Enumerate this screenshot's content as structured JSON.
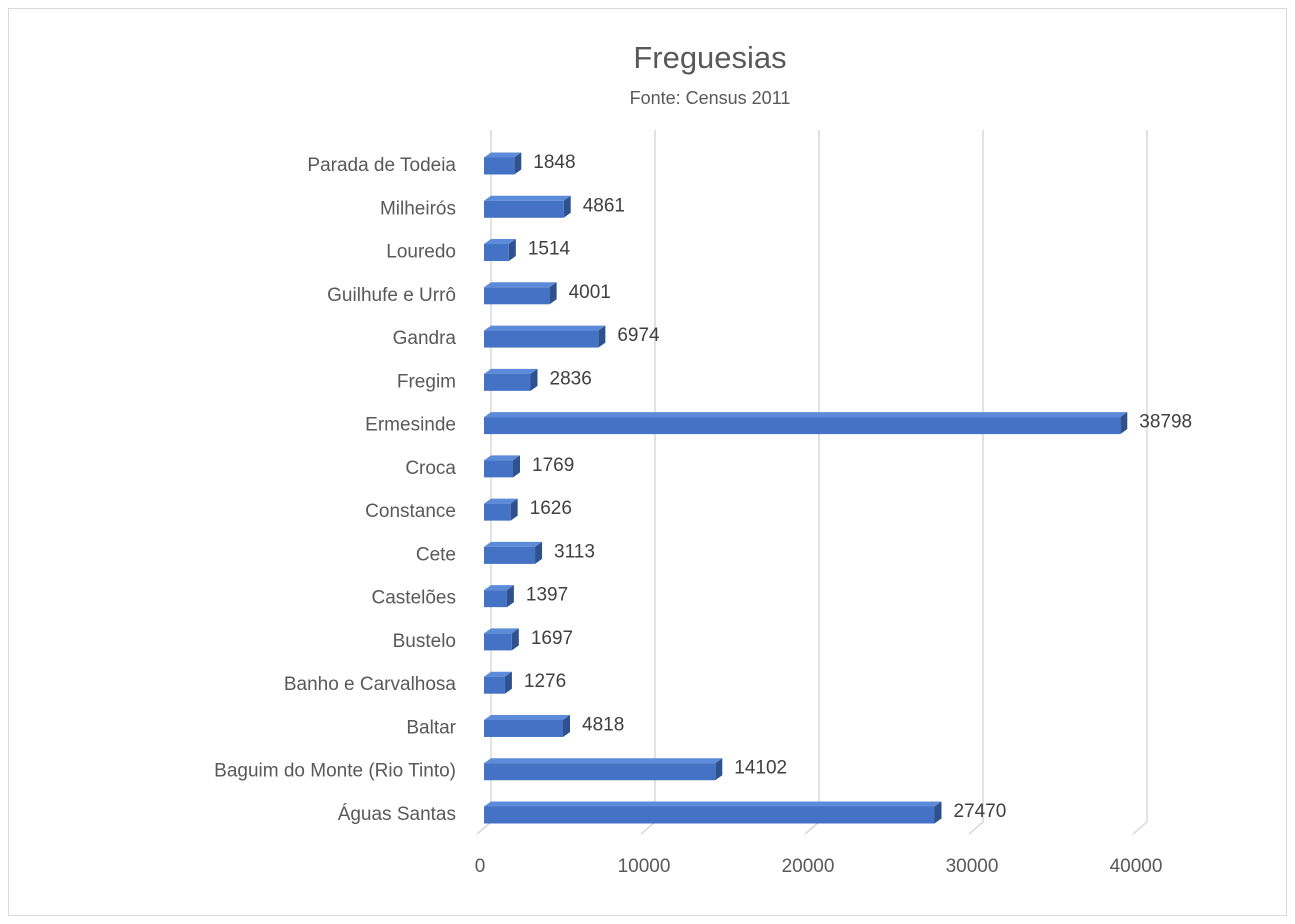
{
  "chart_data": {
    "type": "bar",
    "orientation": "horizontal",
    "style": "3d",
    "title": "Freguesias",
    "subtitle": "Fonte: Census 2011",
    "categories": [
      "Parada de Todeia",
      "Milheirós",
      "Louredo",
      "Guilhufe e Urrô",
      "Gandra",
      "Fregim",
      "Ermesinde",
      "Croca",
      "Constance",
      "Cete",
      "Castelões",
      "Bustelo",
      "Banho e Carvalhosa",
      "Baltar",
      "Baguim do Monte (Rio Tinto)",
      "Águas Santas"
    ],
    "values": [
      1848,
      4861,
      1514,
      4001,
      6974,
      2836,
      38798,
      1769,
      1626,
      3113,
      1397,
      1697,
      1276,
      4818,
      14102,
      27470
    ],
    "color": "#4472c4",
    "xlim": [
      0,
      40000
    ],
    "xticks": [
      0,
      10000,
      20000,
      30000,
      40000
    ],
    "grid": true
  }
}
